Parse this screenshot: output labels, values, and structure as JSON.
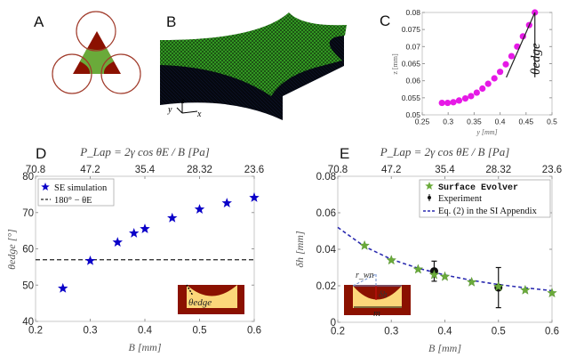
{
  "panels": {
    "A": {
      "label": "A"
    },
    "B": {
      "label": "B",
      "axes": {
        "x": "x",
        "y": "y",
        "z": "z"
      }
    },
    "C": {
      "label": "C",
      "annotation": "θedge"
    },
    "D": {
      "label": "D",
      "inset_label": "θedge"
    },
    "E": {
      "label": "E",
      "inset_labels": {
        "r": "r_wn",
        "dh": "δh",
        "m": "m"
      }
    }
  },
  "colors": {
    "star_blue": "#0a00c8",
    "magenta": "#e619e6",
    "green_star": "#6aaa3a",
    "dark_red": "#8b1100",
    "yellow": "#fcd77a",
    "mesh_green": "#2f8a22",
    "dashed_blue": "#2b2bb0"
  },
  "chart_data": [
    {
      "id": "C",
      "type": "scatter",
      "title": "",
      "xlabel": "y [mm]",
      "ylabel": "z [mm]",
      "xlim": [
        0.25,
        0.5
      ],
      "ylim": [
        0.05,
        0.08
      ],
      "xticks": [
        "0.25",
        "0.3",
        "0.35",
        "0.4",
        "0.45",
        "0.5"
      ],
      "yticks": [
        "0.05",
        "0.055",
        "0.06",
        "0.065",
        "0.07",
        "0.075",
        "0.08"
      ],
      "series": [
        {
          "name": "profile",
          "x": [
            0.288,
            0.299,
            0.31,
            0.321,
            0.333,
            0.344,
            0.355,
            0.366,
            0.377,
            0.389,
            0.4,
            0.411,
            0.422,
            0.433,
            0.444,
            0.456,
            0.467
          ],
          "y": [
            0.0535,
            0.0535,
            0.0537,
            0.0542,
            0.0548,
            0.0555,
            0.0565,
            0.0577,
            0.0591,
            0.0607,
            0.0626,
            0.0648,
            0.0672,
            0.07,
            0.073,
            0.0763,
            0.08
          ]
        }
      ],
      "annotation": "θedge",
      "grid": false
    },
    {
      "id": "D",
      "type": "scatter",
      "title": "P_Lap = 2γ cos θE / B [Pa]",
      "xlabel": "B [mm]",
      "ylabel": "θedge [°]",
      "xlim": [
        0.2,
        0.6
      ],
      "ylim": [
        40,
        80
      ],
      "xticks": [
        "0.2",
        "0.3",
        "0.4",
        "0.5",
        "0.6"
      ],
      "yticks": [
        "40",
        "50",
        "60",
        "70",
        "80"
      ],
      "top_xticks": [
        "70.8",
        "47.2",
        "35.4",
        "28.32",
        "23.6"
      ],
      "series": [
        {
          "name": "SE simulation",
          "x": [
            0.25,
            0.3,
            0.35,
            0.38,
            0.4,
            0.45,
            0.5,
            0.55,
            0.6
          ],
          "y": [
            49.1,
            56.7,
            61.8,
            64.3,
            65.5,
            68.5,
            70.9,
            72.6,
            74.1
          ]
        },
        {
          "name": "180° − θE",
          "type": "hline",
          "y": 57.0
        }
      ],
      "legend": [
        "SE simulation",
        "180° − θE"
      ],
      "legend_position": "top-left",
      "grid": false
    },
    {
      "id": "E",
      "type": "scatter",
      "title": "P_Lap = 2γ cos θE / B [Pa]",
      "xlabel": "B [mm]",
      "ylabel": "δh [mm]",
      "xlim": [
        0.2,
        0.6
      ],
      "ylim": [
        0,
        0.08
      ],
      "xticks": [
        "0.2",
        "0.3",
        "0.4",
        "0.5",
        "0.6"
      ],
      "yticks": [
        "0",
        "0.02",
        "0.04",
        "0.06",
        "0.08"
      ],
      "top_xticks": [
        "70.8",
        "47.2",
        "35.4",
        "28.32",
        "23.6"
      ],
      "series": [
        {
          "name": "Surface Evolver",
          "x": [
            0.25,
            0.3,
            0.35,
            0.38,
            0.4,
            0.45,
            0.5,
            0.55,
            0.6
          ],
          "y": [
            0.042,
            0.034,
            0.029,
            0.026,
            0.025,
            0.022,
            0.0195,
            0.0176,
            0.016
          ]
        },
        {
          "name": "Experiment",
          "x": [
            0.38,
            0.5
          ],
          "y": [
            0.028,
            0.019
          ],
          "err_low": [
            0.0225,
            0.008
          ],
          "err_high": [
            0.0335,
            0.03
          ]
        },
        {
          "name": "Eq. (2) in the SI Appendix",
          "type": "line",
          "x": [
            0.2,
            0.25,
            0.3,
            0.35,
            0.4,
            0.45,
            0.5,
            0.55,
            0.6
          ],
          "y": [
            0.052,
            0.0415,
            0.0345,
            0.0296,
            0.0259,
            0.023,
            0.0207,
            0.0189,
            0.0173
          ]
        }
      ],
      "legend": [
        "Surface Evolver",
        "Experiment",
        "Eq. (2) in the SI Appendix"
      ],
      "legend_position": "top-right",
      "grid": false
    }
  ]
}
